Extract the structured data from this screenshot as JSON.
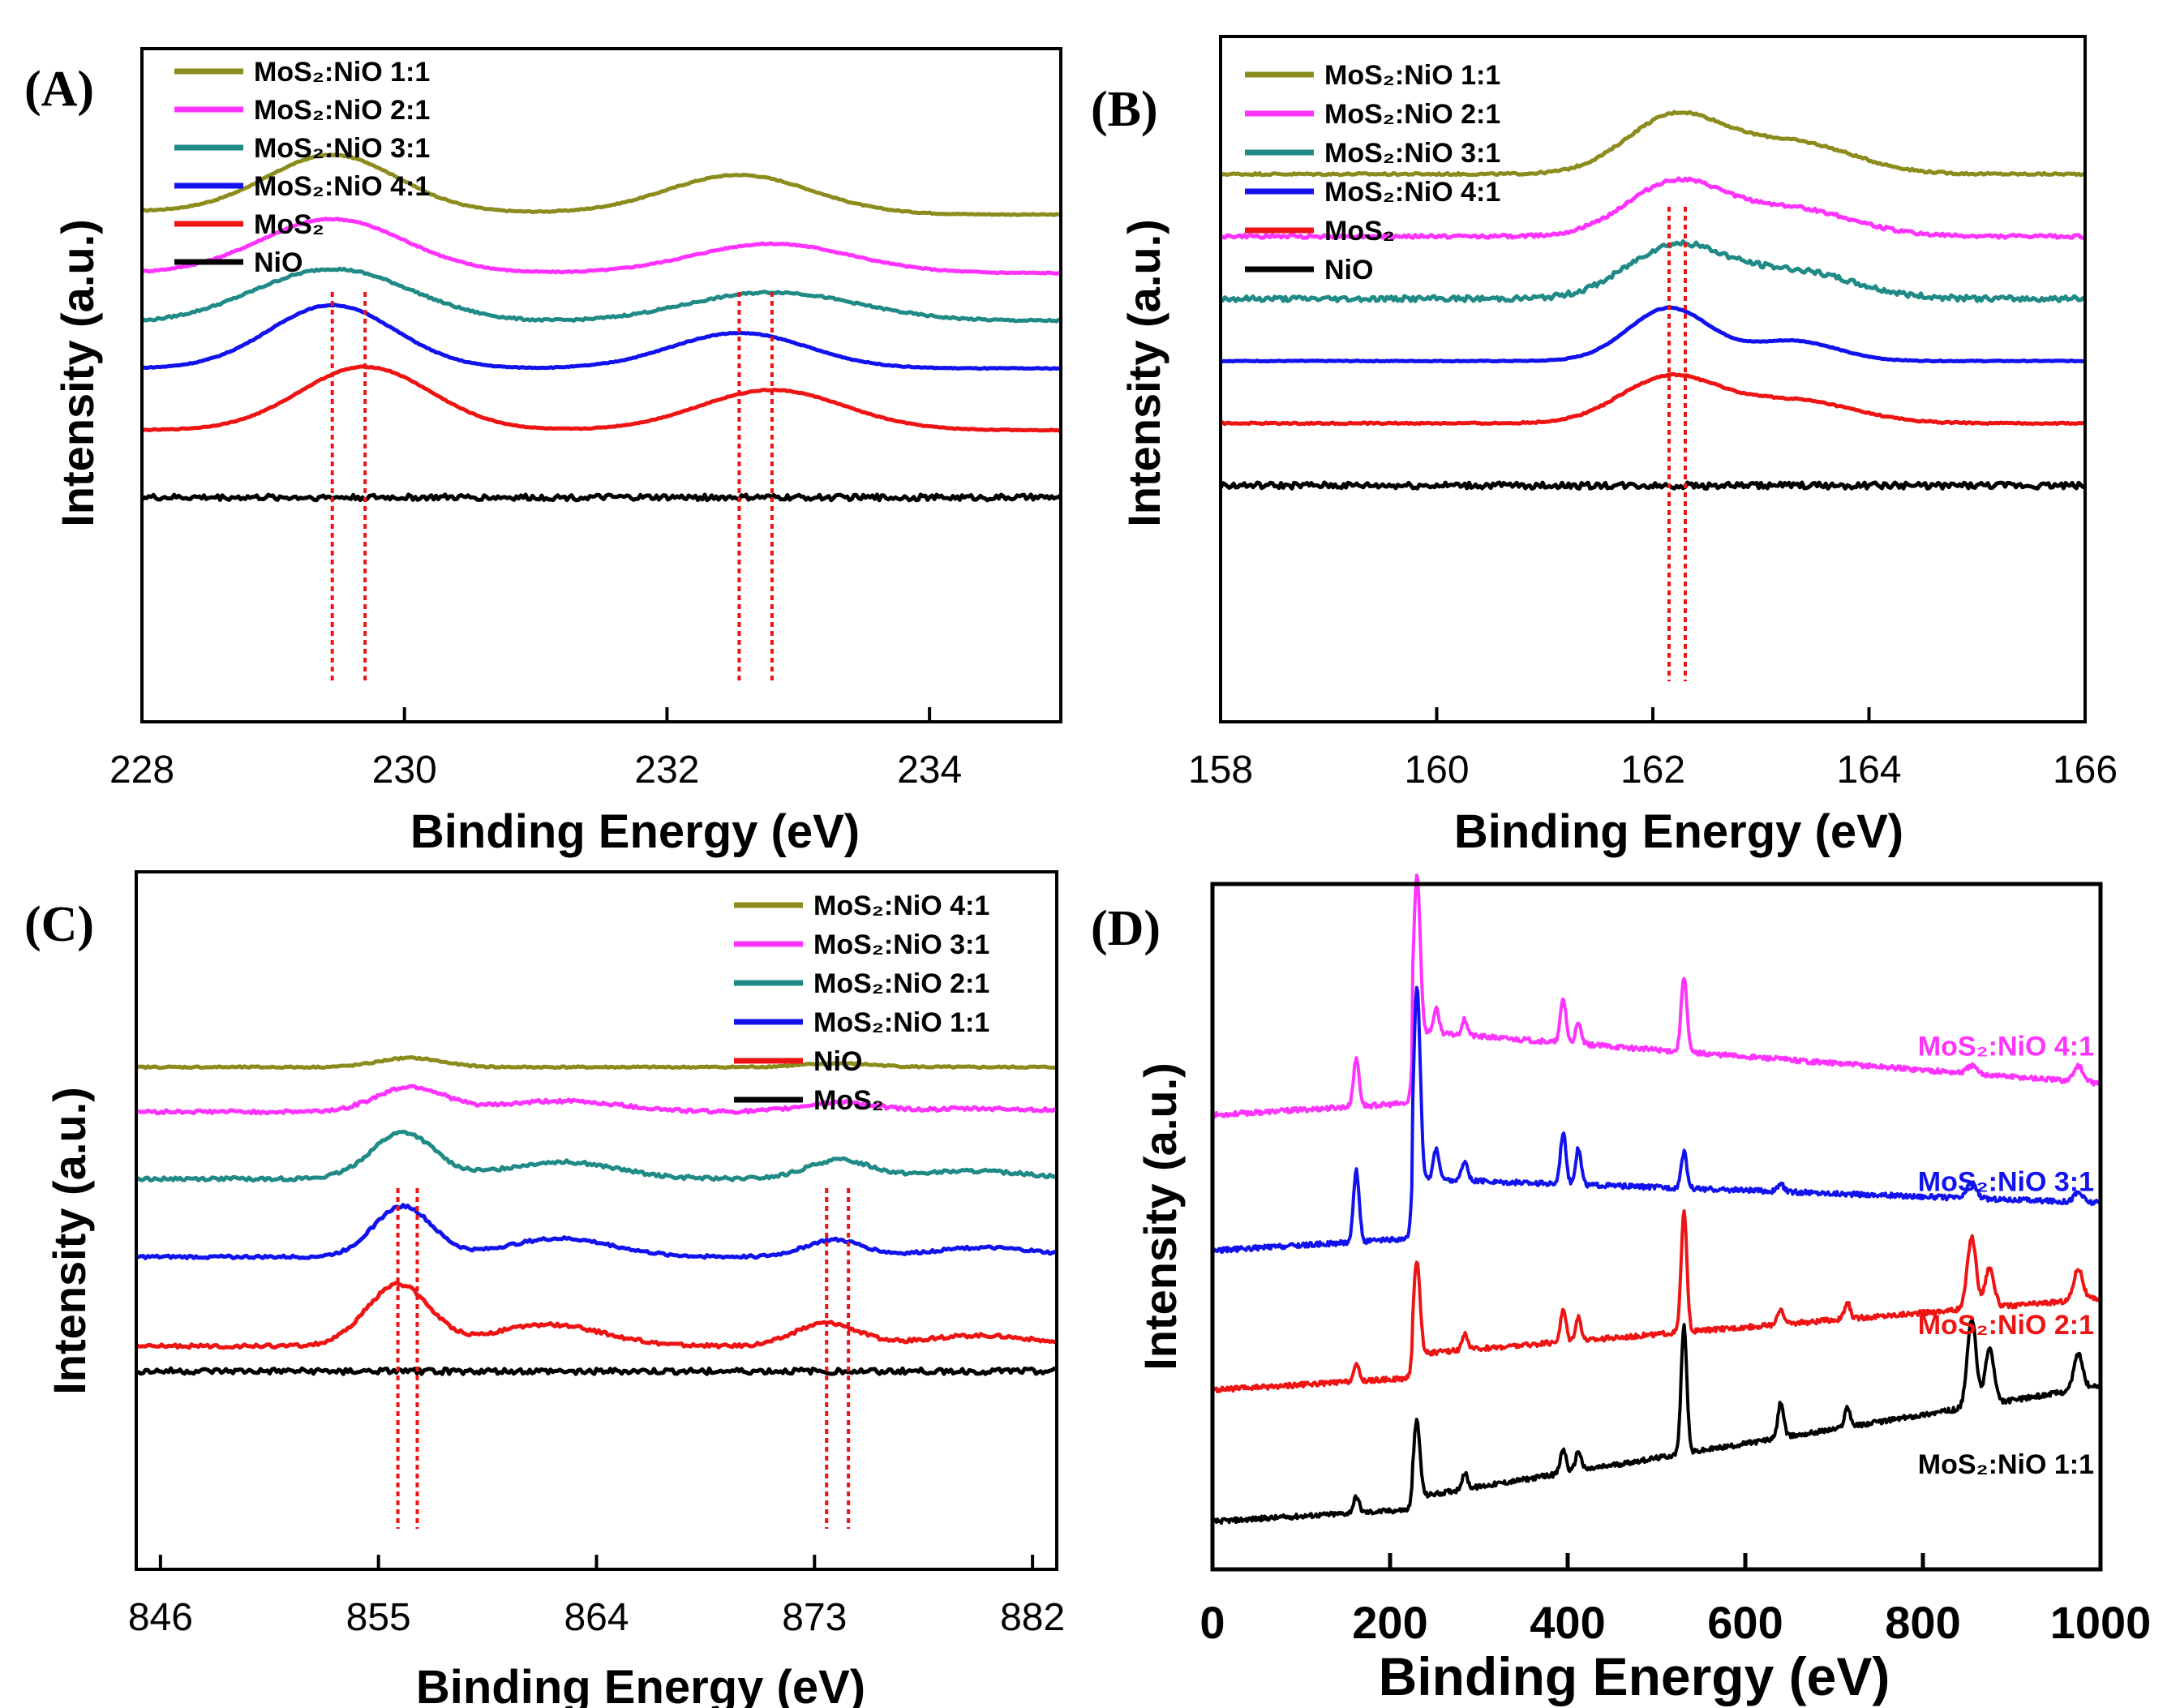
{
  "colors": {
    "olive": "#8c8c1e",
    "magenta": "#ff33ff",
    "teal": "#1f8a86",
    "blue": "#1212ee",
    "red": "#ee1414",
    "black": "#000000",
    "marker": "#ee1414"
  },
  "chart_data": [
    {
      "panel": "(A)",
      "type": "line",
      "xlabel": "Binding Energy (eV)",
      "ylabel": "Intensity (a.u.)",
      "xlim": [
        228,
        235
      ],
      "xticks": [
        "228",
        "230",
        "232",
        "234"
      ],
      "xtick_values": [
        228,
        230,
        232,
        234
      ],
      "legend_position": "top-left",
      "reference_lines": [
        229.45,
        229.7,
        232.55,
        232.8
      ],
      "series": [
        {
          "name": "MoS₂:NiO 1:1",
          "color": "olive",
          "baseline": 0.9,
          "peaks": [
            [
              229.45,
              1.85,
              0.5
            ],
            [
              232.55,
              1.25,
              0.55
            ]
          ],
          "tilt": -0.06,
          "noise": 0.01
        },
        {
          "name": "MoS₂:NiO 2:1",
          "color": "magenta",
          "baseline": 0.6,
          "peaks": [
            [
              229.45,
              1.75,
              0.55
            ],
            [
              232.8,
              0.95,
              0.6
            ]
          ],
          "tilt": 0.0,
          "noise": 0.012
        },
        {
          "name": "MoS₂:NiO 3:1",
          "color": "teal",
          "baseline": 0.85,
          "peaks": [
            [
              229.45,
              1.75,
              0.6
            ],
            [
              232.8,
              0.95,
              0.65
            ]
          ],
          "tilt": 0.05,
          "noise": 0.018
        },
        {
          "name": "MoS₂:NiO 4:1",
          "color": "blue",
          "baseline": 1.7,
          "peaks": [
            [
              229.45,
              2.05,
              0.48
            ],
            [
              232.55,
              1.15,
              0.52
            ]
          ],
          "tilt": 0.0,
          "noise": 0.008
        },
        {
          "name": "MoS₂",
          "color": "red",
          "baseline": 1.7,
          "peaks": [
            [
              229.7,
              2.05,
              0.5
            ],
            [
              232.8,
              1.3,
              0.55
            ]
          ],
          "tilt": 0.0,
          "noise": 0.008
        },
        {
          "name": "NiO",
          "color": "black",
          "baseline": 1.0,
          "peaks": [],
          "tilt": 0.0,
          "noise": 0.05
        }
      ],
      "offsets": [
        9.1,
        8.0,
        7.1,
        6.3,
        5.2,
        4.0
      ]
    },
    {
      "panel": "(B)",
      "type": "line",
      "xlabel": "Binding Energy (eV)",
      "ylabel": "Intensity (a.u.)",
      "xlim": [
        158,
        166
      ],
      "xticks": [
        "158",
        "160",
        "162",
        "164",
        "166"
      ],
      "xtick_values": [
        158,
        160,
        162,
        164,
        166
      ],
      "legend_position": "top-left",
      "reference_lines": [
        162.15,
        162.3
      ],
      "series": [
        {
          "name": "MoS₂:NiO 1:1",
          "color": "olive",
          "baseline": 0.0,
          "peaks": [
            [
              162.2,
              2.0,
              0.45
            ],
            [
              163.3,
              1.1,
              0.55
            ]
          ],
          "tilt": 0.0,
          "noise": 0.02
        },
        {
          "name": "MoS₂:NiO 2:1",
          "color": "magenta",
          "baseline": 0.0,
          "peaks": [
            [
              162.2,
              1.85,
              0.45
            ],
            [
              163.3,
              0.95,
              0.55
            ]
          ],
          "tilt": 0.0,
          "noise": 0.03
        },
        {
          "name": "MoS₂:NiO 3:1",
          "color": "teal",
          "baseline": 0.0,
          "peaks": [
            [
              162.2,
              1.8,
              0.45
            ],
            [
              163.3,
              0.95,
              0.55
            ]
          ],
          "tilt": 0.0,
          "noise": 0.05
        },
        {
          "name": "MoS₂:NiO 4:1",
          "color": "blue",
          "baseline": 0.0,
          "peaks": [
            [
              162.15,
              1.85,
              0.38
            ],
            [
              163.3,
              0.7,
              0.4
            ]
          ],
          "tilt": 0.0,
          "noise": 0.008
        },
        {
          "name": "MoS₂",
          "color": "red",
          "baseline": 0.0,
          "peaks": [
            [
              162.15,
              1.6,
              0.45
            ],
            [
              163.3,
              0.8,
              0.55
            ]
          ],
          "tilt": 0.0,
          "noise": 0.015
        },
        {
          "name": "NiO",
          "color": "black",
          "baseline": 0.0,
          "peaks": [],
          "tilt": 0.0,
          "noise": 0.06
        }
      ],
      "offsets": [
        10.55,
        9.35,
        8.15,
        6.95,
        5.75,
        4.55
      ]
    },
    {
      "panel": "(C)",
      "type": "line",
      "xlabel": "Binding Energy (eV)",
      "ylabel": "Intensity (a.u.)",
      "xlim": [
        845,
        883
      ],
      "xticks": [
        "846",
        "855",
        "864",
        "873",
        "882"
      ],
      "xtick_values": [
        846,
        855,
        864,
        873,
        882
      ],
      "legend_position": "top-right",
      "reference_lines": [
        855.8,
        856.6,
        873.5,
        874.4
      ],
      "series": [
        {
          "name": "MoS₂:NiO 4:1",
          "color": "olive",
          "baseline": 0.0,
          "peaks": [
            [
              856.3,
              0.3,
              1.3
            ],
            [
              874.0,
              0.12,
              1.5
            ]
          ],
          "tilt": 0.0,
          "noise": 0.015
        },
        {
          "name": "MoS₂:NiO 3:1",
          "color": "magenta",
          "baseline": 0.0,
          "peaks": [
            [
              856.3,
              0.8,
              1.4
            ],
            [
              862.5,
              0.35,
              2.5
            ],
            [
              874.0,
              0.3,
              1.5
            ],
            [
              880.0,
              0.1,
              2.5
            ]
          ],
          "tilt": 0.0,
          "noise": 0.03
        },
        {
          "name": "MoS₂:NiO 2:1",
          "color": "teal",
          "baseline": 0.0,
          "peaks": [
            [
              856.0,
              1.5,
              1.3
            ],
            [
              862.5,
              0.55,
              2.3
            ],
            [
              874.0,
              0.6,
              1.3
            ],
            [
              879.5,
              0.25,
              2.3
            ]
          ],
          "tilt": 0.0,
          "noise": 0.03
        },
        {
          "name": "MoS₂:NiO 1:1",
          "color": "blue",
          "baseline": 0.0,
          "peaks": [
            [
              856.0,
              1.65,
              1.2
            ],
            [
              862.5,
              0.6,
              2.2
            ],
            [
              873.8,
              0.55,
              1.2
            ],
            [
              880.0,
              0.3,
              2.2
            ]
          ],
          "tilt": 0.0,
          "noise": 0.025
        },
        {
          "name": "NiO",
          "color": "red",
          "baseline": 0.0,
          "peaks": [
            [
              855.8,
              2.0,
              1.3
            ],
            [
              862.0,
              0.7,
              2.3
            ],
            [
              873.5,
              0.75,
              1.3
            ],
            [
              879.8,
              0.35,
              2.3
            ]
          ],
          "tilt": 0.0,
          "noise": 0.03
        },
        {
          "name": "MoS₂",
          "color": "black",
          "baseline": 0.0,
          "peaks": [],
          "tilt": 0.0,
          "noise": 0.05
        }
      ],
      "offsets": [
        9.0,
        8.2,
        7.0,
        5.6,
        4.0,
        3.55
      ]
    },
    {
      "panel": "(D)",
      "type": "line",
      "xlabel": "Binding Energy (eV)",
      "ylabel": "Intensity (a.u.)",
      "xlim": [
        0,
        1000
      ],
      "xticks": [
        "0",
        "200",
        "400",
        "600",
        "800",
        "1000"
      ],
      "xtick_values": [
        0,
        200,
        400,
        600,
        800,
        1000
      ],
      "legend_position": "inline labels at right",
      "series": [
        {
          "name": "MoS₂:NiO 4:1",
          "color": "magenta",
          "label_y": 6.45,
          "start": 5.7,
          "offset_after_mo": 6.75,
          "peaks": [
            [
              162,
              0.6
            ],
            [
              229,
              1.2
            ],
            [
              232,
              1.0
            ],
            [
              252,
              0.3
            ],
            [
              284,
              0.2
            ],
            [
              395,
              0.55
            ],
            [
              412,
              0.25
            ],
            [
              531,
              0.95
            ],
            [
              855,
              0.1
            ],
            [
              975,
              0.2
            ]
          ],
          "end": 6.1
        },
        {
          "name": "MoS₂:NiO 3:1",
          "color": "blue",
          "label_y": 4.75,
          "start": 4.0,
          "offset_after_mo": 4.9,
          "peaks": [
            [
              162,
              0.9
            ],
            [
              229,
              1.5
            ],
            [
              232,
              1.2
            ],
            [
              252,
              0.4
            ],
            [
              284,
              0.25
            ],
            [
              395,
              0.65
            ],
            [
              412,
              0.45
            ],
            [
              531,
              0.45
            ],
            [
              640,
              0.1
            ],
            [
              855,
              0.2
            ],
            [
              975,
              0.12
            ]
          ],
          "end": 4.6
        },
        {
          "name": "MoS₂:NiO 2:1",
          "color": "red",
          "label_y": 2.95,
          "start": 2.25,
          "offset_after_mo": 2.7,
          "peaks": [
            [
              162,
              0.2
            ],
            [
              229,
              0.8
            ],
            [
              232,
              0.5
            ],
            [
              284,
              0.2
            ],
            [
              395,
              0.4
            ],
            [
              412,
              0.3
            ],
            [
              531,
              1.5
            ],
            [
              640,
              0.2
            ],
            [
              715,
              0.2
            ],
            [
              855,
              0.9
            ],
            [
              875,
              0.5
            ],
            [
              975,
              0.4
            ]
          ],
          "end": 3.4
        },
        {
          "name": "MoS₂:NiO 1:1",
          "color": "black",
          "label_y": 1.2,
          "start": 0.6,
          "offset_after_mo": 0.9,
          "peaks": [
            [
              162,
              0.2
            ],
            [
              229,
              0.65
            ],
            [
              232,
              0.4
            ],
            [
              284,
              0.2
            ],
            [
              395,
              0.3
            ],
            [
              412,
              0.25
            ],
            [
              531,
              1.6
            ],
            [
              640,
              0.45
            ],
            [
              715,
              0.25
            ],
            [
              855,
              1.1
            ],
            [
              875,
              0.7
            ],
            [
              975,
              0.45
            ]
          ],
          "end": 2.3
        }
      ],
      "ylim": [
        0,
        8.6
      ]
    }
  ]
}
